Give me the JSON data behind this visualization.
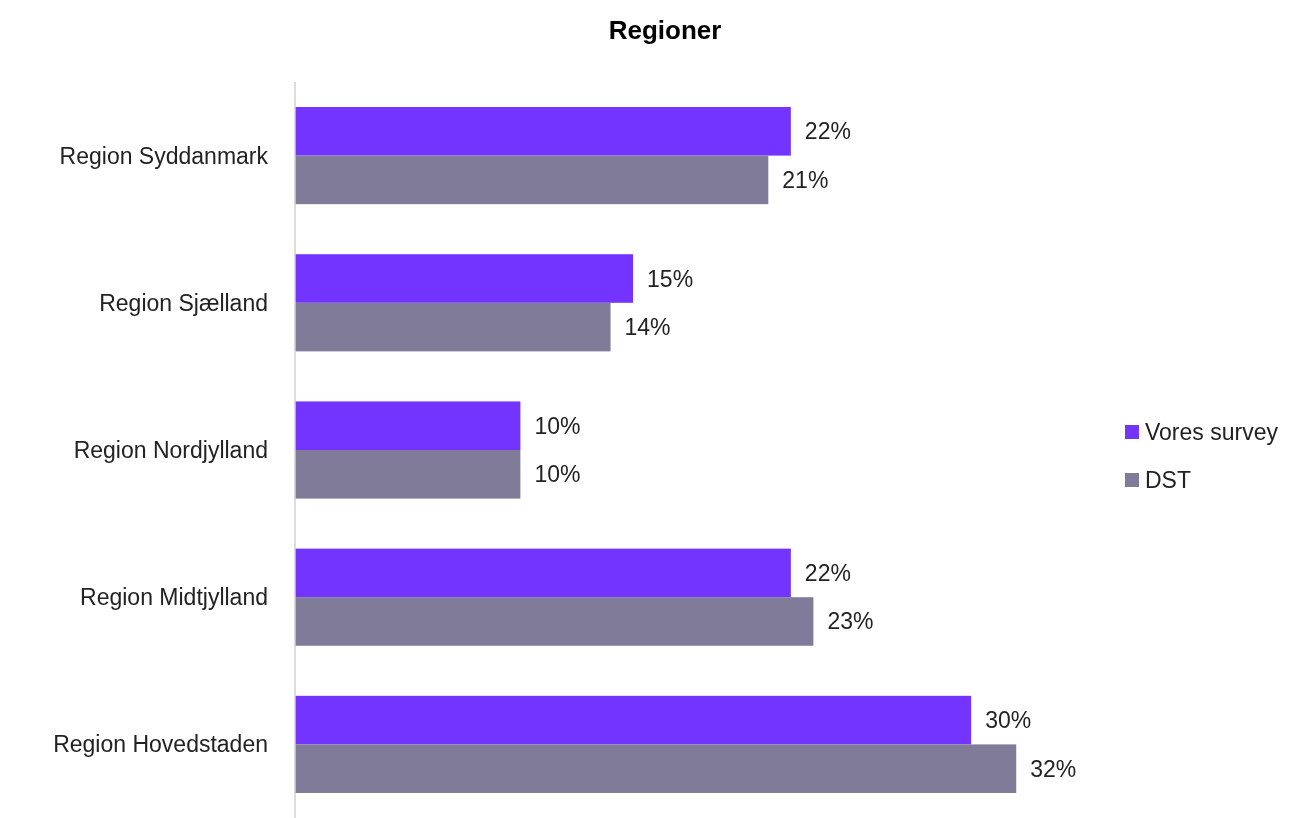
{
  "chart_data": {
    "type": "bar",
    "orientation": "horizontal",
    "title": "Regioner",
    "categories": [
      "Region Syddanmark",
      "Region Sjælland",
      "Region Nordjylland",
      "Region Midtjylland",
      "Region Hovedstaden"
    ],
    "series": [
      {
        "name": "Vores survey",
        "color": "#7434ff",
        "values": [
          22,
          15,
          10,
          22,
          30
        ],
        "value_labels": [
          "22%",
          "15%",
          "10%",
          "22%",
          "30%"
        ]
      },
      {
        "name": "DST",
        "color": "#7f7b99",
        "values": [
          21,
          14,
          10,
          23,
          32
        ],
        "value_labels": [
          "21%",
          "14%",
          "10%",
          "23%",
          "32%"
        ]
      }
    ],
    "legend": "right",
    "grid": false
  }
}
